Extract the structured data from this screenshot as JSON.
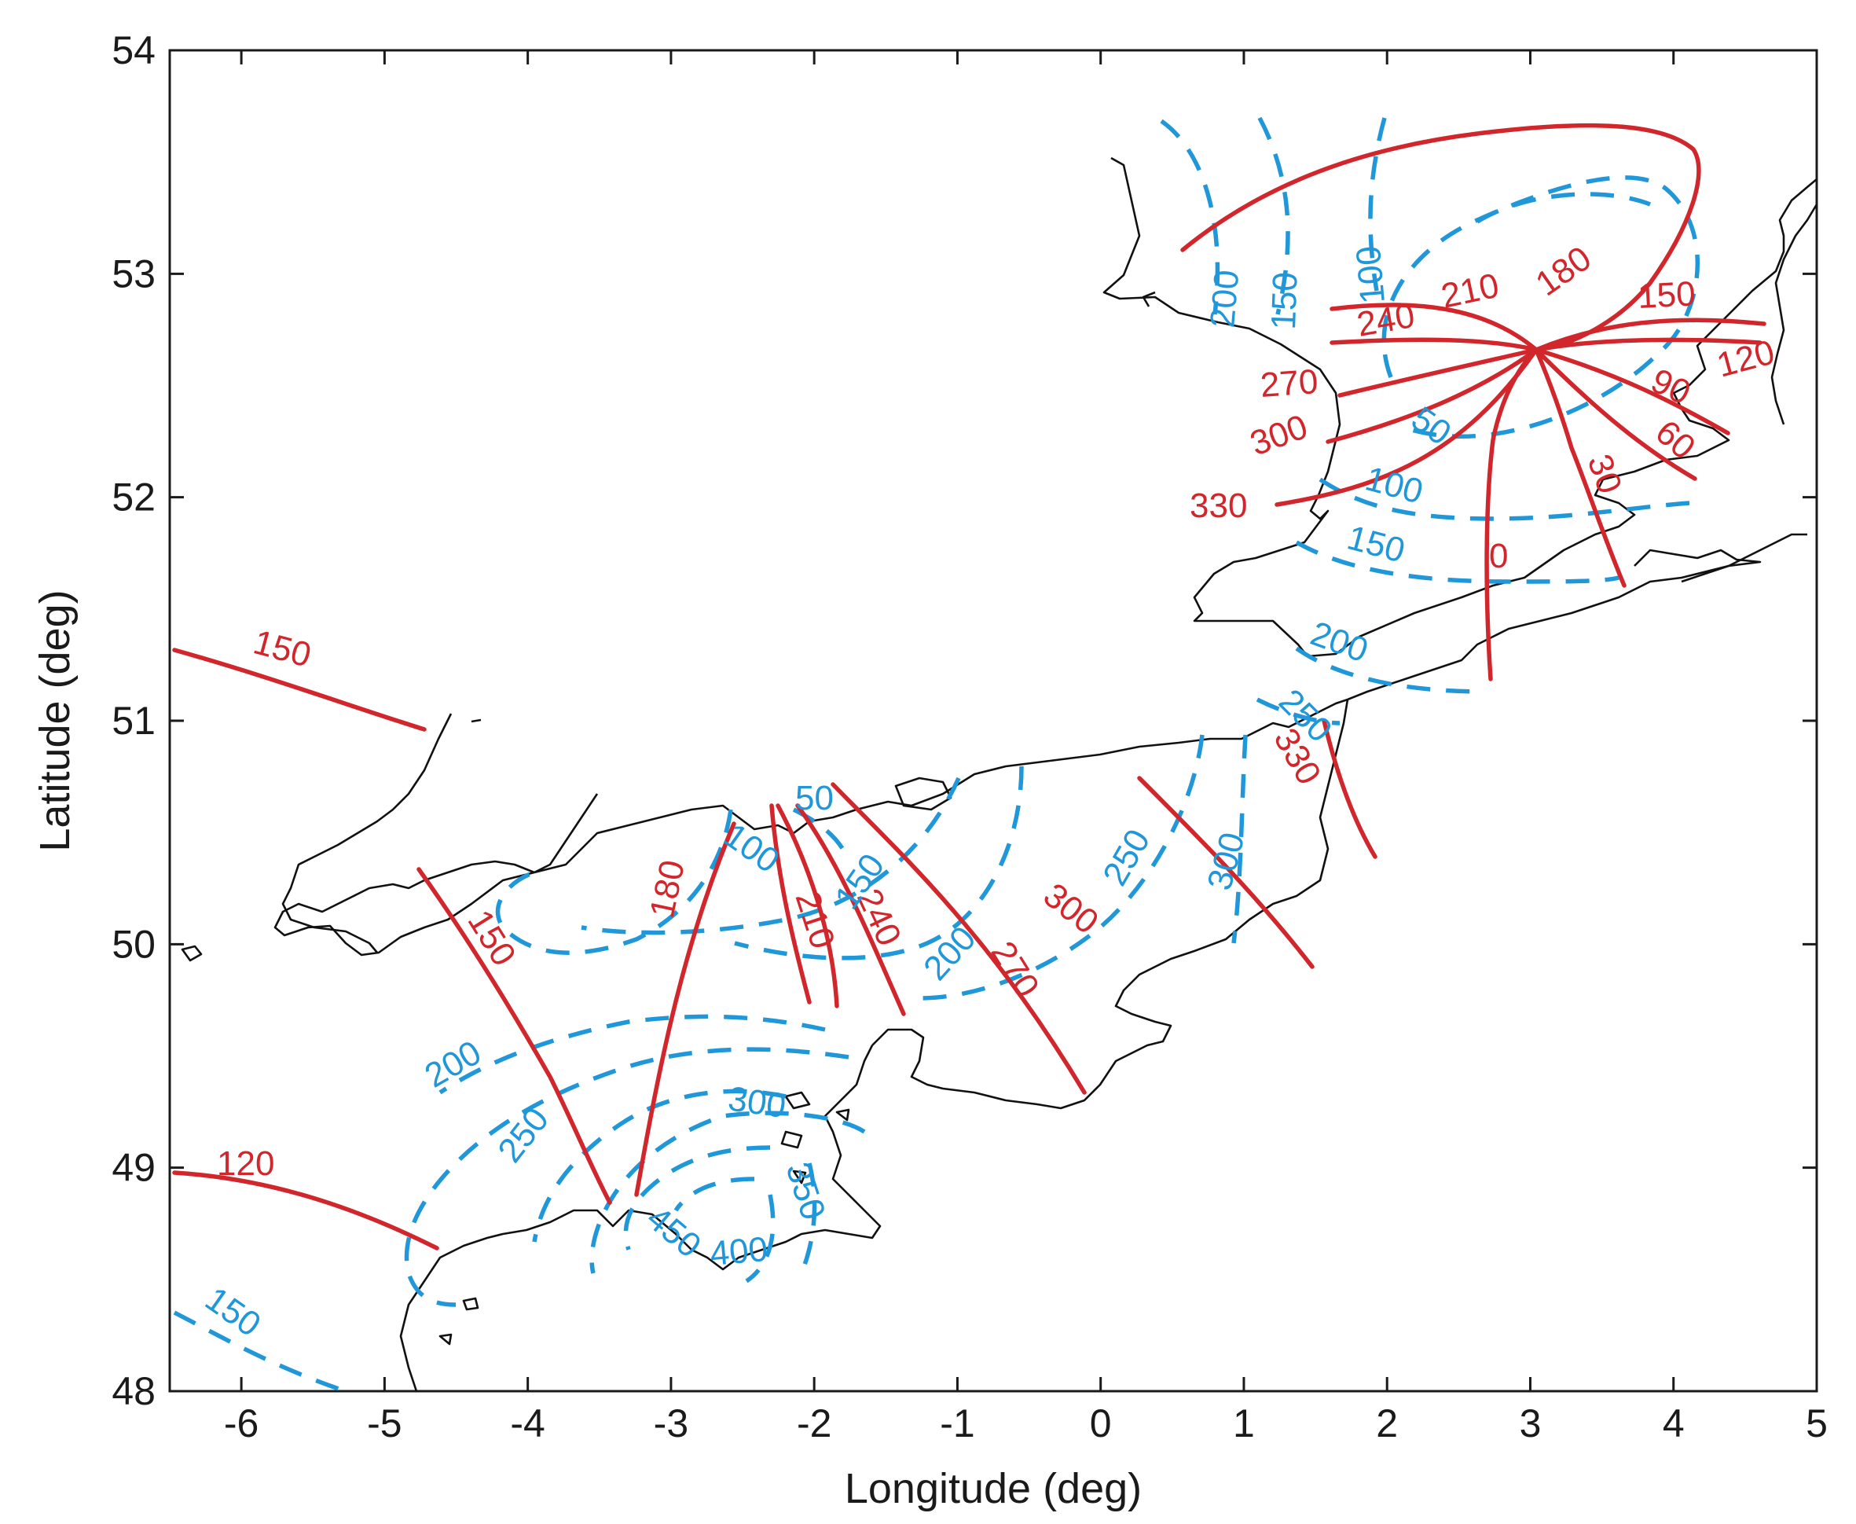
{
  "chart_data": {
    "type": "map-contour",
    "xlabel": "Longitude (deg)",
    "ylabel": "Latitude (deg)",
    "xlim": [
      -6.5,
      5
    ],
    "ylim": [
      48,
      54
    ],
    "xticks": [
      "-6",
      "-5",
      "-4",
      "-3",
      "-2",
      "-1",
      "0",
      "1",
      "2",
      "3",
      "4",
      "5"
    ],
    "yticks": [
      "48",
      "49",
      "50",
      "51",
      "52",
      "53",
      "54"
    ],
    "grid": false,
    "colors": {
      "cotidal_phase": "#d1262b",
      "coamplitude": "#1f97d8",
      "coastline": "#111111",
      "axes": "#1a1a1a"
    },
    "phase_labels": [
      "150",
      "120",
      "150",
      "180",
      "210",
      "240",
      "270",
      "300",
      "330",
      "0",
      "30",
      "60",
      "90",
      "120",
      "150",
      "180",
      "210",
      "240",
      "270",
      "300",
      "330"
    ],
    "amplitude_labels": [
      "200",
      "150",
      "100",
      "50",
      "100",
      "150",
      "200",
      "250",
      "300",
      "250",
      "200",
      "150",
      "100",
      "50",
      "200",
      "250",
      "300",
      "350",
      "400",
      "450",
      "150"
    ],
    "amphidromic_point": {
      "lon": 2.95,
      "lat": 52.65
    }
  }
}
